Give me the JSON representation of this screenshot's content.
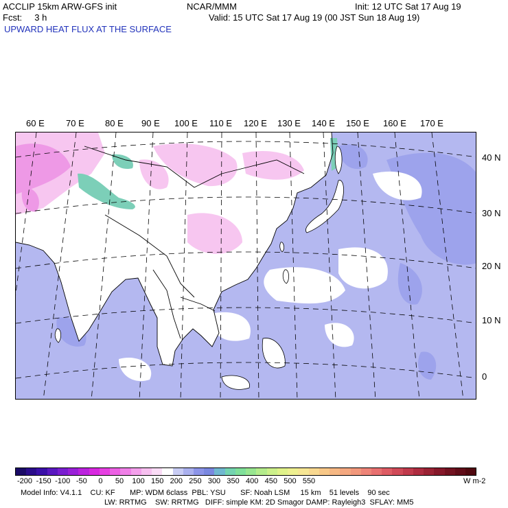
{
  "header": {
    "line1_left": "ACCLIP 15km ARW-GFS init",
    "line1_center": "NCAR/MMM",
    "line1_right": "Init: 12 UTC Sat 17 Aug 19",
    "line2_left": "Fcst:     3 h",
    "line2_right": "Valid: 15 UTC Sat 17 Aug 19 (00 JST Sun 18 Aug 19)",
    "field_title": "UPWARD HEAT FLUX AT THE SURFACE"
  },
  "map": {
    "lon_labels": [
      "60 E",
      "70 E",
      "80 E",
      "90 E",
      "100 E",
      "110 E",
      "120 E",
      "130 E",
      "140 E",
      "150 E",
      "160 E",
      "170 E"
    ],
    "lat_labels": [
      "40 N",
      "30 N",
      "20 N",
      "10 N",
      "0"
    ],
    "colors": {
      "ocean_light": "#b4b8f0",
      "ocean_mid": "#9da3ec",
      "land": "#ffffff",
      "land_pink": "#f7c6f0",
      "land_magenta": "#ee99e6",
      "teal": "#7ccfb8",
      "coast": "#000000",
      "grid": "#000000"
    }
  },
  "colorbar": {
    "tick_labels": [
      "-200",
      "-150",
      "-100",
      "-50",
      "0",
      "50",
      "100",
      "150",
      "200",
      "250",
      "300",
      "350",
      "400",
      "450",
      "500",
      "550"
    ],
    "unit": "W m-2",
    "colors": [
      "#1a0a66",
      "#2a0c8a",
      "#3a10a8",
      "#5a18c0",
      "#7a1ed0",
      "#9a20d8",
      "#bb22de",
      "#d828e0",
      "#e640e2",
      "#ec60e4",
      "#f080e8",
      "#f4a0ec",
      "#f7c0f0",
      "#fadcf6",
      "#ffffff",
      "#c8ccf4",
      "#aab0ee",
      "#8c94e8",
      "#7a88e0",
      "#70b8d0",
      "#74d4b0",
      "#80e09a",
      "#98e690",
      "#b4ec8c",
      "#ccf08a",
      "#e0f28a",
      "#eef090",
      "#f6e694",
      "#f8d890",
      "#f8c888",
      "#f6b884",
      "#f4a880",
      "#f2987c",
      "#ee8478",
      "#e87070",
      "#de5c64",
      "#d04a58",
      "#c03a4c",
      "#ae2c40",
      "#9a2234",
      "#86182a",
      "#721220",
      "#600c18",
      "#500810"
    ]
  },
  "footer": {
    "line1": "Model Info: V4.1.1    CU: KF       MP: WDM 6class  PBL: YSU       SF: Noah LSM     15 km    51 levels    90 sec",
    "line2": "LW: RRTMG    SW: RRTMG   DIFF: simple KM: 2D Smagor DAMP: Rayleigh3  SFLAY: MM5"
  }
}
